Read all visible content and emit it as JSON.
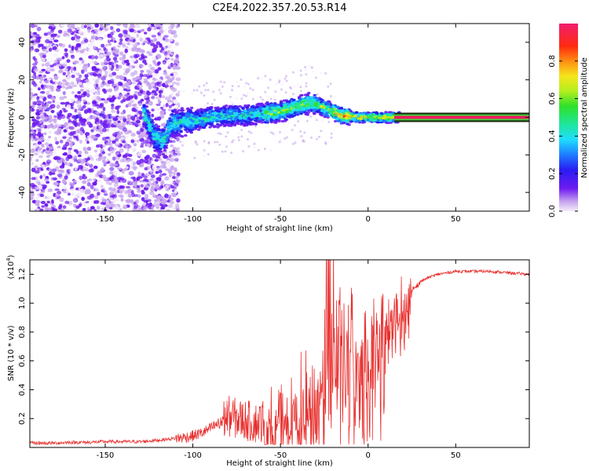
{
  "title": "C2E4.2022.357.20.53.R14",
  "chart_data": [
    {
      "type": "heatmap",
      "xlabel": "Height of straight line (km)",
      "ylabel": "Frequency (Hz)",
      "xlim": [
        -193,
        92
      ],
      "ylim": [
        -50,
        50
      ],
      "xticks": [
        -150,
        -100,
        -50,
        0,
        50
      ],
      "yticks": [
        -40,
        -20,
        0,
        20,
        40
      ],
      "colorbar": {
        "label": "Normalized spectral amplitude",
        "range": [
          0,
          1
        ],
        "ticks": [
          "0.0",
          "0.2",
          "0.4",
          "0.6",
          "0.8"
        ]
      },
      "ridge": [
        {
          "x": -190,
          "f": 2
        },
        {
          "x": -170,
          "f": 3
        },
        {
          "x": -155,
          "f": 0
        },
        {
          "x": -140,
          "f": 3
        },
        {
          "x": -128,
          "f": 2
        },
        {
          "x": -122,
          "f": -10
        },
        {
          "x": -117,
          "f": -13
        },
        {
          "x": -112,
          "f": -3
        },
        {
          "x": -100,
          "f": -2
        },
        {
          "x": -90,
          "f": 0
        },
        {
          "x": -80,
          "f": 1
        },
        {
          "x": -70,
          "f": 1
        },
        {
          "x": -60,
          "f": 2
        },
        {
          "x": -50,
          "f": 3
        },
        {
          "x": -40,
          "f": 6
        },
        {
          "x": -32,
          "f": 8
        },
        {
          "x": -25,
          "f": 5
        },
        {
          "x": -15,
          "f": 1
        },
        {
          "x": -5,
          "f": 0
        },
        {
          "x": 5,
          "f": 0
        },
        {
          "x": 15,
          "f": 0
        },
        {
          "x": 92,
          "f": 0
        }
      ]
    },
    {
      "type": "line",
      "xlabel": "Height of straight line (km)",
      "ylabel": "SNR (10 * v/v)",
      "yscale_label": "(x10",
      "yscale_exponent": "4",
      "yscale_close": ")",
      "xlim": [
        -193,
        92
      ],
      "ylim": [
        0,
        1.3
      ],
      "xticks": [
        -150,
        -100,
        -50,
        0,
        50
      ],
      "yticks": [
        "0.2",
        "0.4",
        "0.6",
        "0.8",
        "1.0",
        "1.2"
      ],
      "series": [
        {
          "color": "#e8302e",
          "x": [
            -193,
            -180,
            -170,
            -160,
            -150,
            -140,
            -130,
            -120,
            -112,
            -105,
            -100,
            -95,
            -90,
            -85,
            -80,
            -75,
            -70,
            -65,
            -60,
            -55,
            -50,
            -45,
            -40,
            -35,
            -30,
            -25,
            -22,
            -20,
            -18,
            -15,
            -12,
            -10,
            -8,
            -5,
            -2,
            0,
            5,
            10,
            15,
            20,
            25,
            30,
            35,
            40,
            50,
            60,
            70,
            80,
            92
          ],
          "y": [
            0.03,
            0.03,
            0.035,
            0.035,
            0.04,
            0.04,
            0.04,
            0.05,
            0.06,
            0.07,
            0.08,
            0.1,
            0.13,
            0.17,
            0.22,
            0.2,
            0.19,
            0.17,
            0.18,
            0.2,
            0.23,
            0.27,
            0.3,
            0.38,
            0.45,
            0.55,
            0.7,
            0.85,
            0.8,
            0.75,
            0.78,
            0.8,
            0.78,
            0.78,
            0.79,
            0.82,
            0.85,
            0.88,
            0.95,
            1.02,
            1.1,
            1.15,
            1.18,
            1.2,
            1.22,
            1.22,
            1.22,
            1.21,
            1.2
          ]
        }
      ]
    }
  ]
}
